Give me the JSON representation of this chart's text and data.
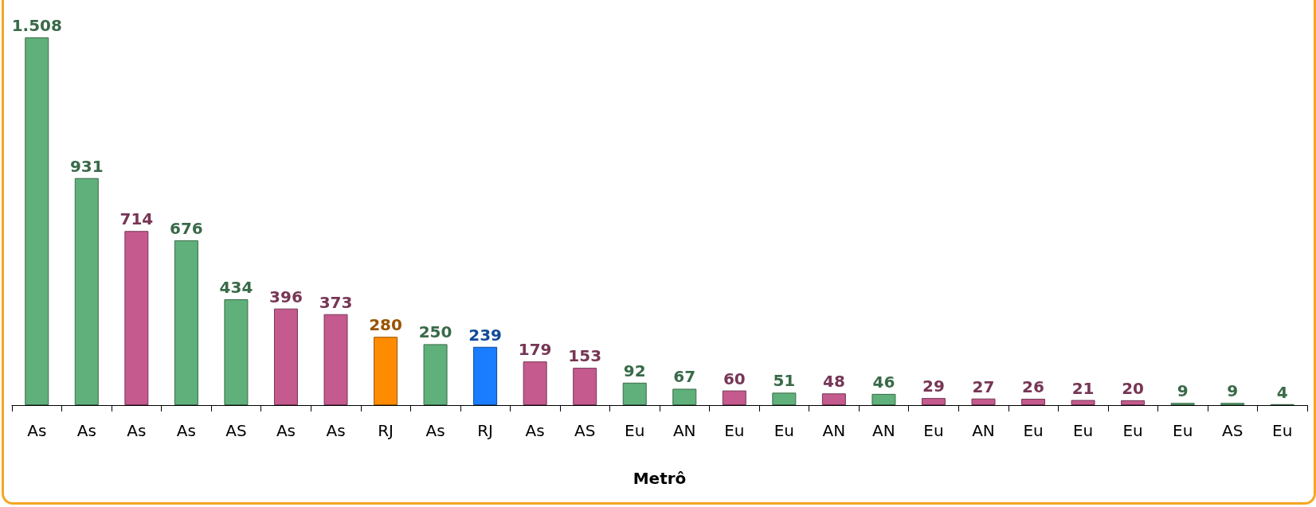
{
  "chart_data": {
    "type": "bar",
    "xlabel": "Metrô",
    "categories": [
      "As",
      "As",
      "As",
      "As",
      "AS",
      "As",
      "As",
      "RJ",
      "As",
      "RJ",
      "As",
      "AS",
      "Eu",
      "AN",
      "Eu",
      "Eu",
      "AN",
      "AN",
      "Eu",
      "AN",
      "Eu",
      "Eu",
      "Eu",
      "Eu",
      "AS",
      "Eu"
    ],
    "values": [
      1508,
      931,
      714,
      676,
      434,
      396,
      373,
      280,
      250,
      239,
      179,
      153,
      92,
      67,
      60,
      51,
      48,
      46,
      29,
      27,
      26,
      21,
      20,
      9,
      9,
      4
    ],
    "colors": [
      "#5fb07a",
      "#5fb07a",
      "#c45a8e",
      "#5fb07a",
      "#5fb07a",
      "#c45a8e",
      "#c45a8e",
      "#ff8c00",
      "#5fb07a",
      "#1a7cff",
      "#c45a8e",
      "#c45a8e",
      "#5fb07a",
      "#5fb07a",
      "#c45a8e",
      "#5fb07a",
      "#c45a8e",
      "#5fb07a",
      "#c45a8e",
      "#c45a8e",
      "#c45a8e",
      "#c45a8e",
      "#c45a8e",
      "#5fb07a",
      "#5fb07a",
      "#5fb07a"
    ],
    "value_labels": [
      "1.508",
      "931",
      "714",
      "676",
      "434",
      "396",
      "373",
      "280",
      "250",
      "239",
      "179",
      "153",
      "92",
      "67",
      "60",
      "51",
      "48",
      "46",
      "29",
      "27",
      "26",
      "21",
      "20",
      "9",
      "9",
      "4"
    ]
  }
}
